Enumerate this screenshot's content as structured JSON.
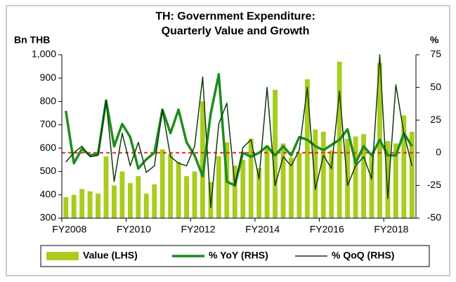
{
  "chart_data": {
    "type": "bar_line_dual",
    "title": "TH: Government Expenditure:",
    "subtitle": "Quarterly Value and Growth",
    "ylabel": "Bn THB",
    "y2label": "%",
    "categories": [
      "FY2008",
      null,
      null,
      null,
      null,
      null,
      null,
      null,
      "FY2010",
      null,
      null,
      null,
      null,
      null,
      null,
      null,
      "FY2012",
      null,
      null,
      null,
      null,
      null,
      null,
      null,
      "FY2014",
      null,
      null,
      null,
      null,
      null,
      null,
      null,
      "FY2016",
      null,
      null,
      null,
      null,
      null,
      null,
      null,
      "FY2018",
      null,
      null,
      null
    ],
    "series": [
      {
        "name": "Value (LHS)",
        "kind": "bar",
        "color": "#a9cc1f",
        "values": [
          390,
          400,
          425,
          415,
          405,
          565,
          440,
          500,
          450,
          480,
          405,
          445,
          595,
          575,
          540,
          480,
          500,
          800,
          455,
          565,
          625,
          525,
          550,
          640,
          515,
          610,
          850,
          620,
          560,
          580,
          895,
          680,
          670,
          590,
          970,
          640,
          650,
          660,
          565,
          965,
          630,
          620,
          740,
          670
        ]
      },
      {
        "name": "% YoY (RHS)",
        "kind": "line",
        "axis": "y2",
        "color": "#1e8c1e",
        "values": [
          32,
          -8,
          3,
          -2,
          -1,
          40,
          5,
          22,
          12,
          -12,
          -5,
          0,
          33,
          15,
          33,
          8,
          -2,
          -18,
          30,
          60,
          -22,
          -25,
          0,
          -3,
          0,
          5,
          -2,
          5,
          -2,
          12,
          10,
          5,
          2,
          6,
          10,
          18,
          -8,
          5,
          -2,
          10,
          -2,
          -2,
          15,
          5
        ]
      },
      {
        "name": "% QoQ (RHS)",
        "kind": "line",
        "axis": "y2",
        "color": "#0d3b0d",
        "values": [
          -7,
          0,
          5,
          -3,
          -2,
          40,
          -22,
          15,
          -10,
          8,
          -15,
          -10,
          33,
          -3,
          -8,
          -10,
          5,
          58,
          -42,
          22,
          38,
          -25,
          4,
          10,
          -20,
          50,
          -25,
          -3,
          -10,
          2,
          50,
          -28,
          -2,
          -12,
          47,
          -25,
          -10,
          -3,
          -20,
          75,
          -35,
          52,
          15,
          -10
        ]
      }
    ],
    "ylim": [
      300,
      1000
    ],
    "yticks": [
      300,
      400,
      500,
      600,
      700,
      800,
      900,
      {
        "value": 1000,
        "label": "1,000"
      }
    ],
    "y2lim": [
      -50,
      75
    ],
    "y2ticks": [
      -50,
      -25,
      0,
      25,
      50,
      75
    ],
    "reference_line": {
      "axis": "y2",
      "value": 0,
      "color": "#e8281e"
    },
    "legend": "bottom"
  }
}
